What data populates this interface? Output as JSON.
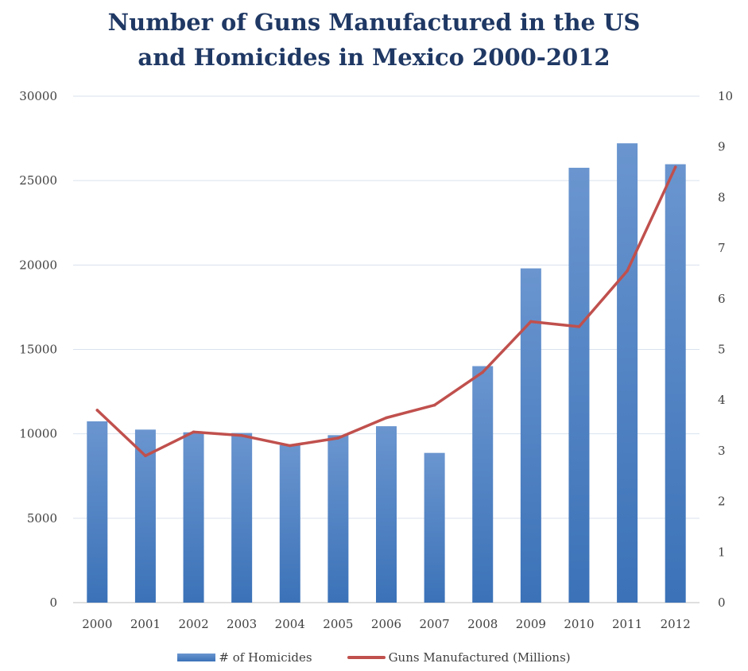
{
  "chart_data": {
    "type": "bar",
    "title_lines": [
      "Number of Guns Manufactured in the US",
      "and Homicides in Mexico 2000-2012"
    ],
    "categories": [
      "2000",
      "2001",
      "2002",
      "2003",
      "2004",
      "2005",
      "2006",
      "2007",
      "2008",
      "2009",
      "2010",
      "2011",
      "2012"
    ],
    "series": [
      {
        "name": "# of Homicides",
        "type": "bar",
        "axis": "left",
        "values": [
          10740,
          10250,
          10090,
          10050,
          9330,
          9920,
          10450,
          8870,
          14010,
          19800,
          25760,
          27210,
          25970
        ]
      },
      {
        "name": "Guns Manufactured (Millions)",
        "type": "line",
        "axis": "right",
        "values": [
          3.8,
          2.9,
          3.37,
          3.3,
          3.1,
          3.25,
          3.65,
          3.9,
          4.55,
          5.55,
          5.45,
          6.55,
          8.6
        ]
      }
    ],
    "ylim_left": [
      0,
      30000
    ],
    "yticks_left": [
      "0",
      "5000",
      "10000",
      "15000",
      "20000",
      "25000",
      "30000"
    ],
    "ylim_right": [
      0,
      10
    ],
    "yticks_right": [
      "0",
      "1",
      "2",
      "3",
      "4",
      "5",
      "6",
      "7",
      "8",
      "9",
      "10"
    ],
    "grid": true,
    "legend_position": "bottom",
    "colors": {
      "bar_top": "#6a95cf",
      "bar_bottom": "#3b72b8",
      "line": "#c0504d",
      "grid": "#d9e2ee",
      "title": "#1f3864"
    }
  }
}
